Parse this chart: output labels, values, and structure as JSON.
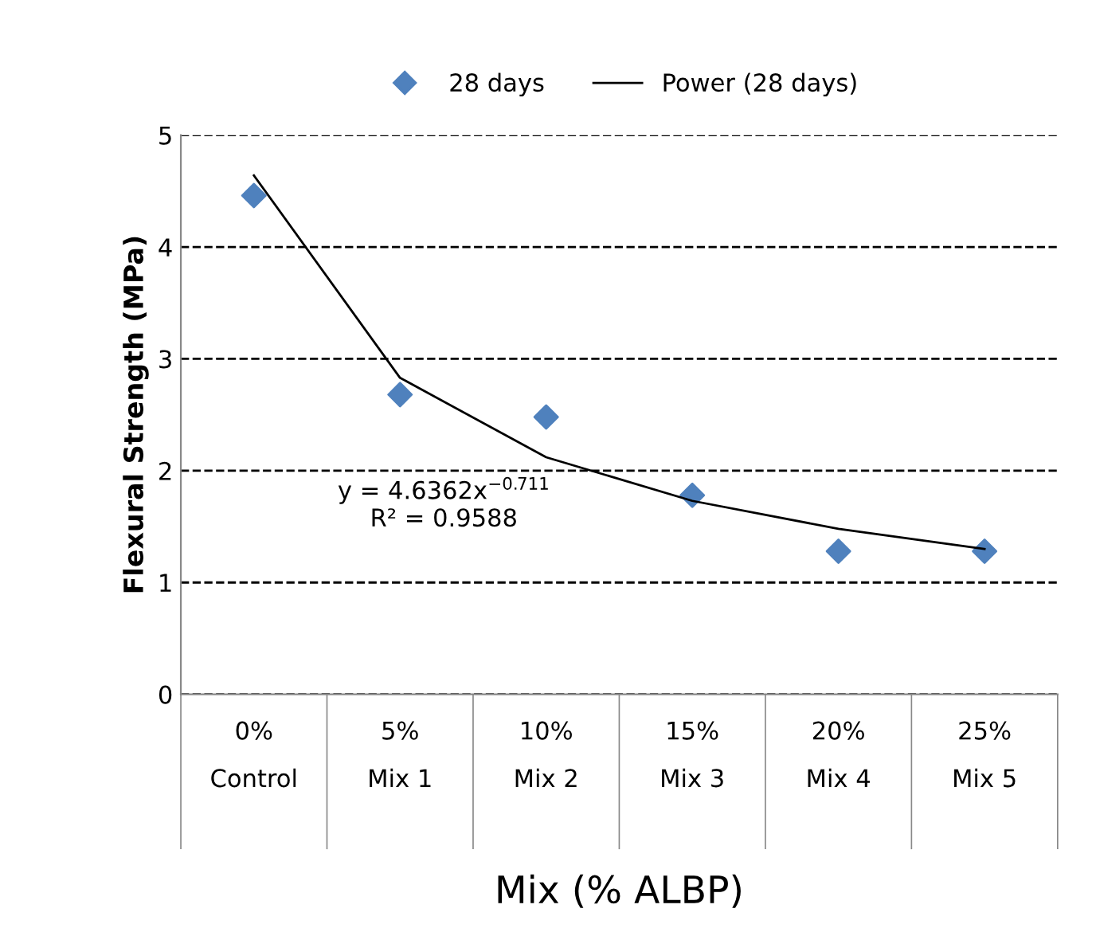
{
  "chart_data": {
    "type": "scatter",
    "xlabel": "Mix (% ALBP)",
    "ylabel": "Flexural Strength (MPa)",
    "categories": [
      "0%\nControl",
      "5%\nMix 1",
      "10%\nMix 2",
      "15%\nMix 3",
      "20%\nMix 4",
      "25%\nMix 5"
    ],
    "series": [
      {
        "name": "28 days",
        "color": "#4f81bd",
        "marker": "diamond",
        "values": [
          4.46,
          2.68,
          2.48,
          1.78,
          1.28,
          1.28
        ]
      },
      {
        "name": "Power (28 days)",
        "type": "line",
        "color": "#000000",
        "line_style": "solid",
        "values": [
          4.64,
          2.83,
          2.12,
          1.73,
          1.48,
          1.3
        ]
      }
    ],
    "annotations": [
      "y = 4.6362x$^{−0.711}$\nR² = 0.9588"
    ],
    "ylim": [
      0,
      5
    ],
    "yticks": [
      0,
      1,
      2,
      3,
      4,
      5
    ],
    "grid": "y",
    "legend": "top"
  }
}
